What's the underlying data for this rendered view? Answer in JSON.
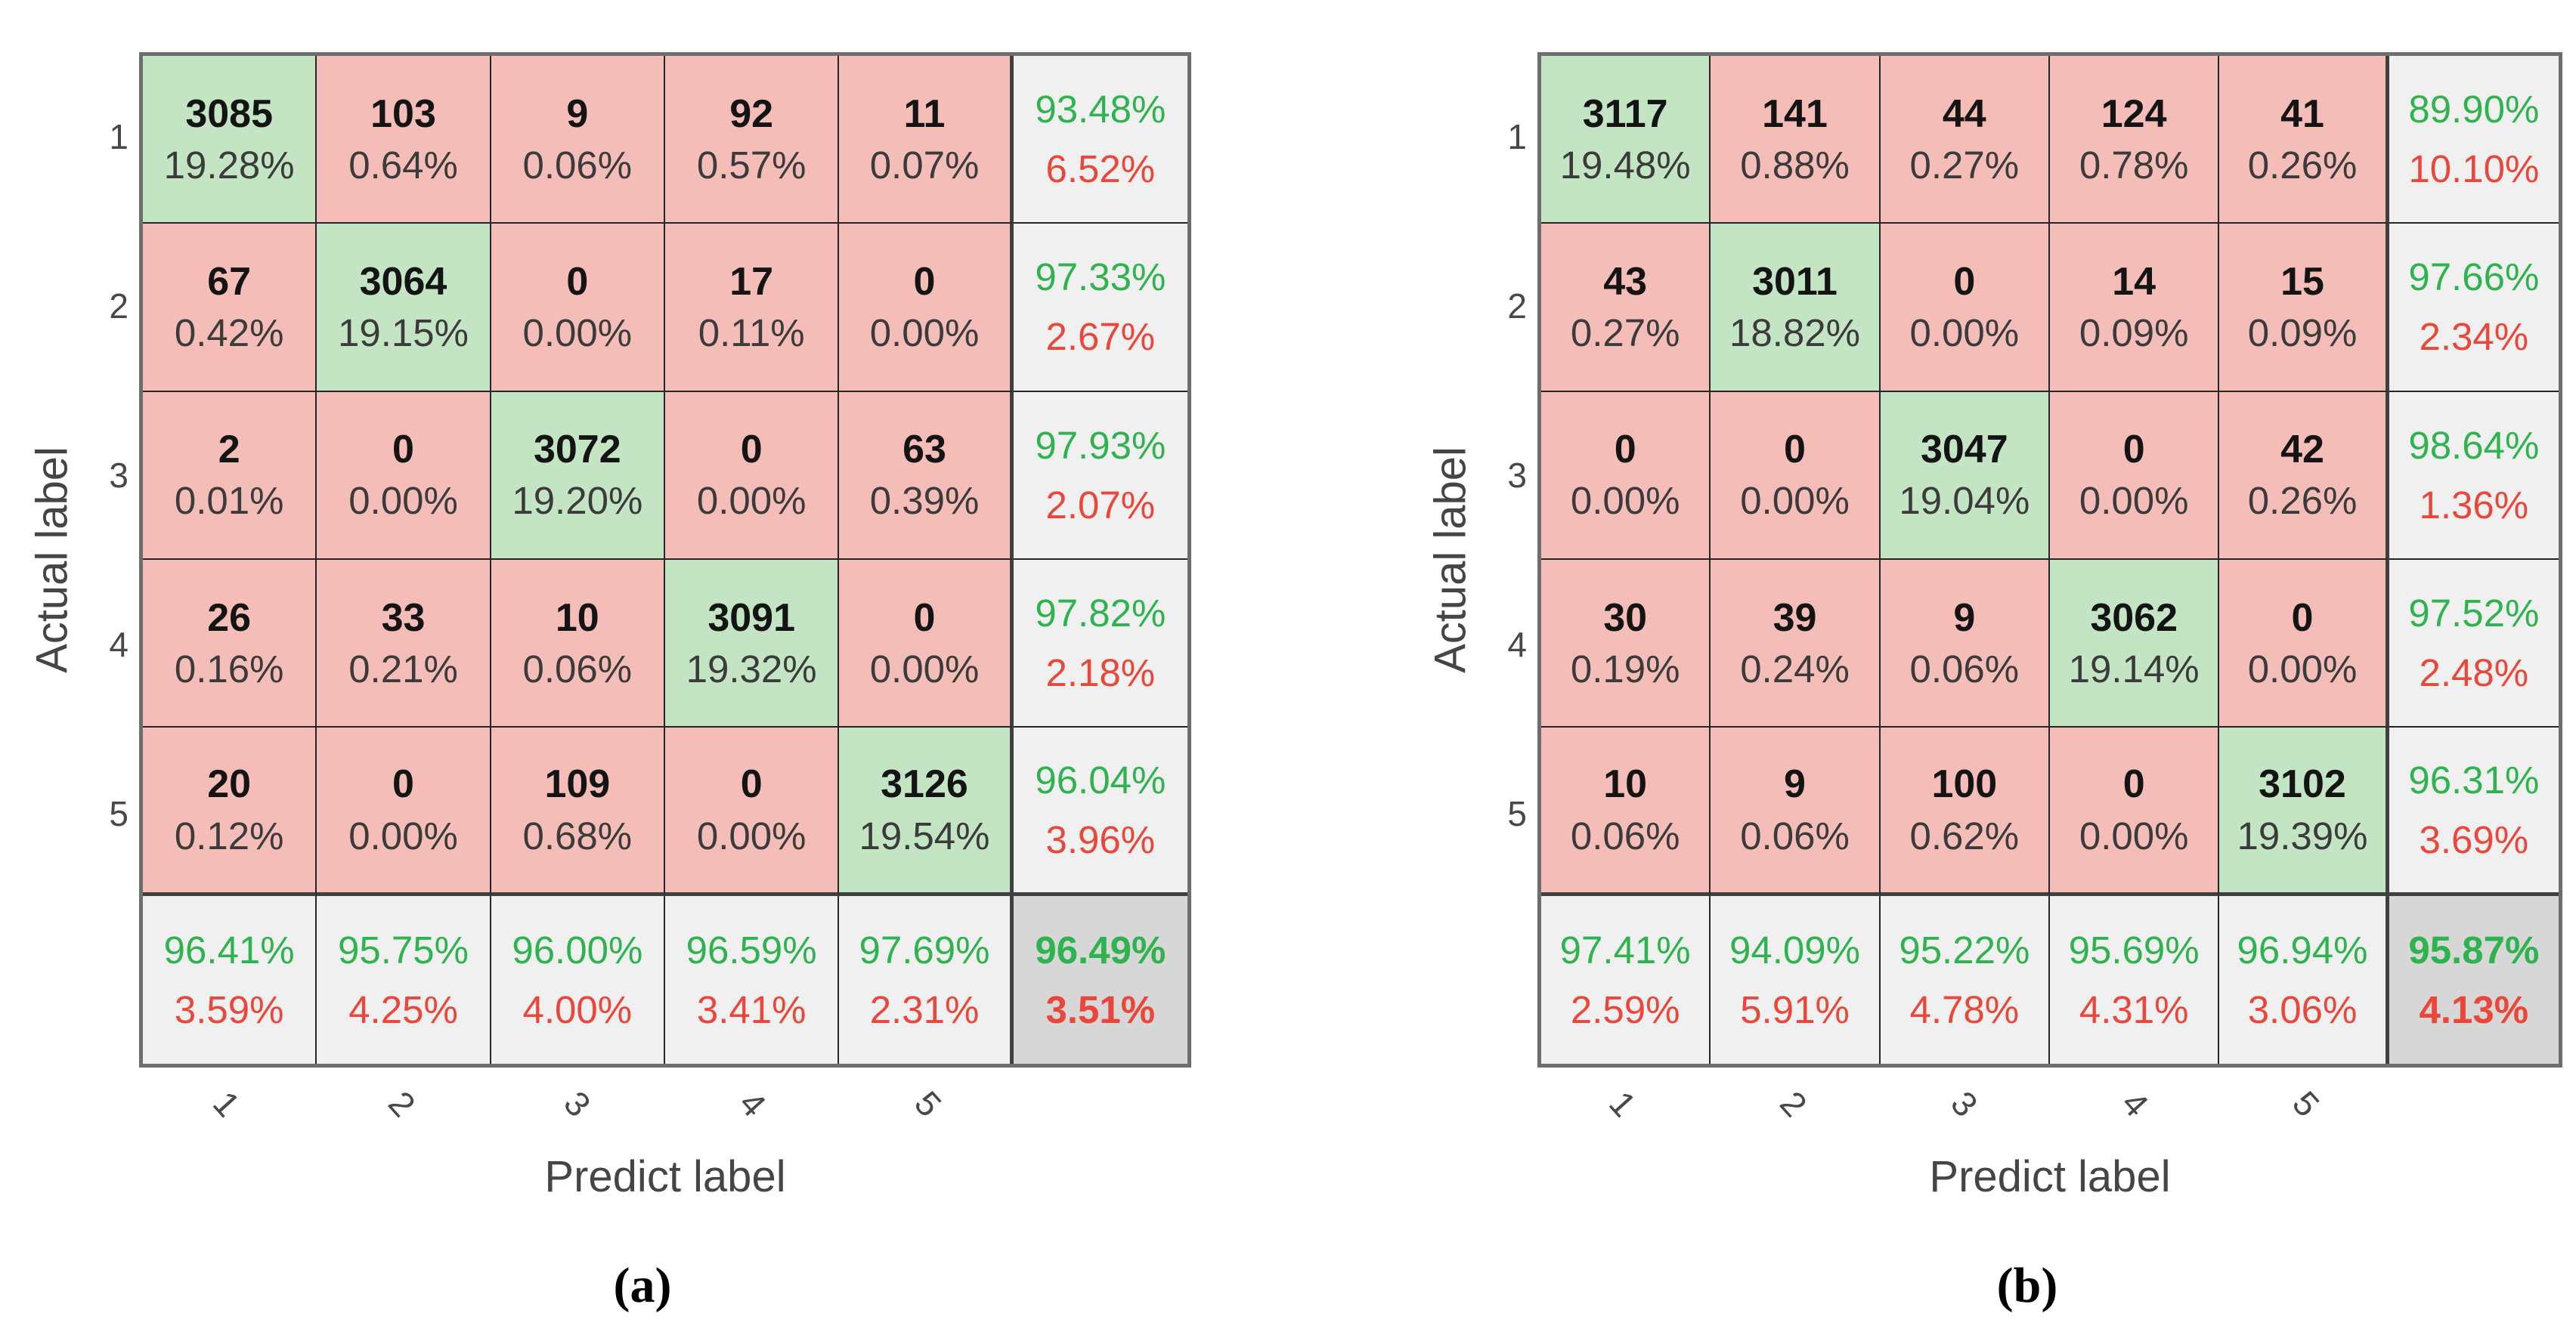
{
  "chart_data": [
    {
      "type": "heatmap",
      "title": "(a)",
      "xlabel": "Predict label",
      "ylabel": "Actual label",
      "classes": [
        "1",
        "2",
        "3",
        "4",
        "5"
      ],
      "counts": [
        [
          3085,
          103,
          9,
          92,
          11
        ],
        [
          67,
          3064,
          0,
          17,
          0
        ],
        [
          2,
          0,
          3072,
          0,
          63
        ],
        [
          26,
          33,
          10,
          3091,
          0
        ],
        [
          20,
          0,
          109,
          0,
          3126
        ]
      ],
      "cell_pct": [
        [
          "19.28%",
          "0.64%",
          "0.06%",
          "0.57%",
          "0.07%"
        ],
        [
          "0.42%",
          "19.15%",
          "0.00%",
          "0.11%",
          "0.00%"
        ],
        [
          "0.01%",
          "0.00%",
          "19.20%",
          "0.00%",
          "0.39%"
        ],
        [
          "0.16%",
          "0.21%",
          "0.06%",
          "19.32%",
          "0.00%"
        ],
        [
          "0.12%",
          "0.00%",
          "0.68%",
          "0.00%",
          "19.54%"
        ]
      ],
      "row_summary": [
        [
          "93.48%",
          "6.52%"
        ],
        [
          "97.33%",
          "2.67%"
        ],
        [
          "97.93%",
          "2.07%"
        ],
        [
          "97.82%",
          "2.18%"
        ],
        [
          "96.04%",
          "3.96%"
        ]
      ],
      "col_summary": [
        [
          "96.41%",
          "3.59%"
        ],
        [
          "95.75%",
          "4.25%"
        ],
        [
          "96.00%",
          "4.00%"
        ],
        [
          "96.59%",
          "3.41%"
        ],
        [
          "97.69%",
          "2.31%"
        ]
      ],
      "overall": [
        "96.49%",
        "3.51%"
      ]
    },
    {
      "type": "heatmap",
      "title": "(b)",
      "xlabel": "Predict label",
      "ylabel": "Actual label",
      "classes": [
        "1",
        "2",
        "3",
        "4",
        "5"
      ],
      "counts": [
        [
          3117,
          141,
          44,
          124,
          41
        ],
        [
          43,
          3011,
          0,
          14,
          15
        ],
        [
          0,
          0,
          3047,
          0,
          42
        ],
        [
          30,
          39,
          9,
          3062,
          0
        ],
        [
          10,
          9,
          100,
          0,
          3102
        ]
      ],
      "cell_pct": [
        [
          "19.48%",
          "0.88%",
          "0.27%",
          "0.78%",
          "0.26%"
        ],
        [
          "0.27%",
          "18.82%",
          "0.00%",
          "0.09%",
          "0.09%"
        ],
        [
          "0.00%",
          "0.00%",
          "19.04%",
          "0.00%",
          "0.26%"
        ],
        [
          "0.19%",
          "0.24%",
          "0.06%",
          "19.14%",
          "0.00%"
        ],
        [
          "0.06%",
          "0.06%",
          "0.62%",
          "0.00%",
          "19.39%"
        ]
      ],
      "row_summary": [
        [
          "89.90%",
          "10.10%"
        ],
        [
          "97.66%",
          "2.34%"
        ],
        [
          "98.64%",
          "1.36%"
        ],
        [
          "97.52%",
          "2.48%"
        ],
        [
          "96.31%",
          "3.69%"
        ]
      ],
      "col_summary": [
        [
          "97.41%",
          "2.59%"
        ],
        [
          "94.09%",
          "5.91%"
        ],
        [
          "95.22%",
          "4.78%"
        ],
        [
          "95.69%",
          "4.31%"
        ],
        [
          "96.94%",
          "3.06%"
        ]
      ],
      "overall": [
        "95.87%",
        "4.13%"
      ]
    }
  ],
  "colors": {
    "diag_bg": "#c4e5c3",
    "off_bg": "#f5bdb7",
    "summary_bg": "#f0f0f0",
    "total_bg": "#d7d7d7",
    "good_text": "#2eb34e",
    "bad_text": "#ea4639",
    "count_text": "#141414",
    "pct_text": "#3b3b3b",
    "grid_line": "#262626",
    "thick_line": "#404040",
    "outer_border": "#6e6e6e",
    "tick_text": "#484848",
    "axis_text": "#454545"
  }
}
